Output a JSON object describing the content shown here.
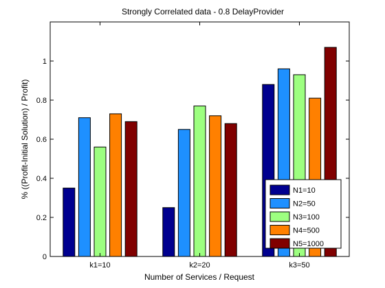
{
  "chart_data": {
    "type": "bar",
    "title": "Strongly Correlated data - 0.8 DelayProvider",
    "xlabel": "Number of Services / Request",
    "ylabel": "% ((Profit-Initial Solution) / Profit)",
    "categories": [
      "k1=10",
      "k2=20",
      "k3=50"
    ],
    "ylim": [
      0,
      1.2
    ],
    "yticks": [
      0,
      0.2,
      0.4,
      0.6,
      0.8,
      1
    ],
    "ytick_labels": [
      "0",
      "0.2",
      "0.4",
      "0.6",
      "0.8",
      "1"
    ],
    "legend_position": "bottom-right",
    "grid": false,
    "series": [
      {
        "name": "N1=10",
        "color": "#00008f",
        "values": [
          0.35,
          0.25,
          0.88
        ]
      },
      {
        "name": "N2=50",
        "color": "#1e90ff",
        "values": [
          0.71,
          0.65,
          0.96
        ]
      },
      {
        "name": "N3=100",
        "color": "#9dff80",
        "values": [
          0.56,
          0.77,
          0.93
        ]
      },
      {
        "name": "N4=500",
        "color": "#ff8000",
        "values": [
          0.73,
          0.72,
          0.81
        ]
      },
      {
        "name": "N5=1000",
        "color": "#800000",
        "values": [
          0.69,
          0.68,
          1.07
        ]
      }
    ]
  }
}
